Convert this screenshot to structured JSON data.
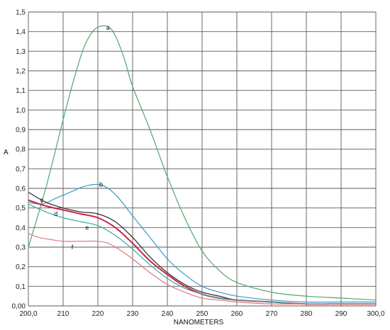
{
  "chart_data": {
    "type": "line",
    "title": "",
    "xlabel": "NANOMETERS",
    "ylabel": "A",
    "xlim": [
      200,
      300
    ],
    "ylim": [
      0,
      1.5
    ],
    "x_ticks": [
      200,
      210,
      220,
      230,
      240,
      250,
      260,
      270,
      280,
      290,
      300
    ],
    "x_tick_labels": [
      "200,0",
      "210",
      "220",
      "230",
      "240",
      "250",
      "260",
      "270",
      "280",
      "290",
      "300,0"
    ],
    "y_ticks": [
      0,
      0.1,
      0.2,
      0.3,
      0.4,
      0.5,
      0.6,
      0.7,
      0.8,
      0.9,
      1.0,
      1.1,
      1.2,
      1.3,
      1.4,
      1.5
    ],
    "y_tick_labels": [
      "0,00",
      "0,1",
      "0,2",
      "0,3",
      "0,4",
      "0,5",
      "0,6",
      "0,7",
      "0,8",
      "0,9",
      "1,0",
      "1,1",
      "1,2",
      "1,3",
      "1,4",
      "1,5"
    ],
    "grid": true,
    "series": [
      {
        "name": "a",
        "color": "#4fa86a",
        "x": [
          200,
          205,
          210,
          213,
          216,
          219,
          222,
          224,
          226,
          228,
          230,
          235,
          240,
          245,
          250,
          255,
          260,
          270,
          280,
          290,
          300
        ],
        "y": [
          0.3,
          0.6,
          0.95,
          1.15,
          1.32,
          1.41,
          1.43,
          1.41,
          1.34,
          1.24,
          1.12,
          0.9,
          0.66,
          0.45,
          0.28,
          0.18,
          0.12,
          0.07,
          0.05,
          0.04,
          0.03
        ],
        "label_at": [
          222,
          1.42
        ]
      },
      {
        "name": "b",
        "color": "#3c98c8",
        "x": [
          200,
          204,
          208,
          212,
          216,
          220,
          223,
          226,
          230,
          235,
          240,
          245,
          250,
          255,
          260,
          270,
          280,
          290,
          300
        ],
        "y": [
          0.53,
          0.52,
          0.55,
          0.58,
          0.61,
          0.62,
          0.6,
          0.55,
          0.46,
          0.35,
          0.24,
          0.16,
          0.1,
          0.07,
          0.05,
          0.03,
          0.02,
          0.02,
          0.02
        ],
        "label_at": [
          220,
          0.62
        ]
      },
      {
        "name": "c",
        "color": "#2a2a2a",
        "x": [
          200,
          205,
          210,
          215,
          220,
          225,
          230,
          235,
          240,
          245,
          250,
          255,
          260,
          270,
          280,
          290,
          300
        ],
        "y": [
          0.58,
          0.53,
          0.5,
          0.48,
          0.47,
          0.43,
          0.35,
          0.25,
          0.17,
          0.11,
          0.07,
          0.05,
          0.03,
          0.02,
          0.01,
          0.01,
          0.01
        ],
        "label_at": [
          203,
          0.54
        ]
      },
      {
        "name": "d",
        "color": "#cc2244",
        "x": [
          200,
          205,
          210,
          215,
          220,
          225,
          230,
          235,
          240,
          245,
          250,
          255,
          260,
          270,
          280,
          290,
          300
        ],
        "y": [
          0.54,
          0.51,
          0.49,
          0.47,
          0.45,
          0.4,
          0.32,
          0.23,
          0.16,
          0.1,
          0.06,
          0.04,
          0.03,
          0.02,
          0.01,
          0.01,
          0.01
        ],
        "label_at": [
          207,
          0.47
        ]
      },
      {
        "name": "e",
        "color": "#3aa9a0",
        "x": [
          200,
          205,
          210,
          215,
          220,
          225,
          230,
          235,
          240,
          245,
          250,
          255,
          260,
          270,
          280,
          290,
          300
        ],
        "y": [
          0.52,
          0.48,
          0.45,
          0.43,
          0.41,
          0.36,
          0.29,
          0.21,
          0.14,
          0.09,
          0.06,
          0.04,
          0.03,
          0.02,
          0.01,
          0.01,
          0.01
        ],
        "label_at": [
          216,
          0.4
        ]
      },
      {
        "name": "f",
        "color": "#e07878",
        "x": [
          200,
          203,
          206,
          210,
          215,
          220,
          223,
          226,
          230,
          235,
          240,
          245,
          250,
          255,
          260,
          270,
          280,
          290,
          300
        ],
        "y": [
          0.37,
          0.35,
          0.34,
          0.33,
          0.33,
          0.33,
          0.32,
          0.29,
          0.24,
          0.17,
          0.11,
          0.07,
          0.04,
          0.03,
          0.02,
          0.01,
          0.01,
          0.01,
          0.01
        ],
        "label_at": [
          212,
          0.3
        ]
      }
    ]
  }
}
